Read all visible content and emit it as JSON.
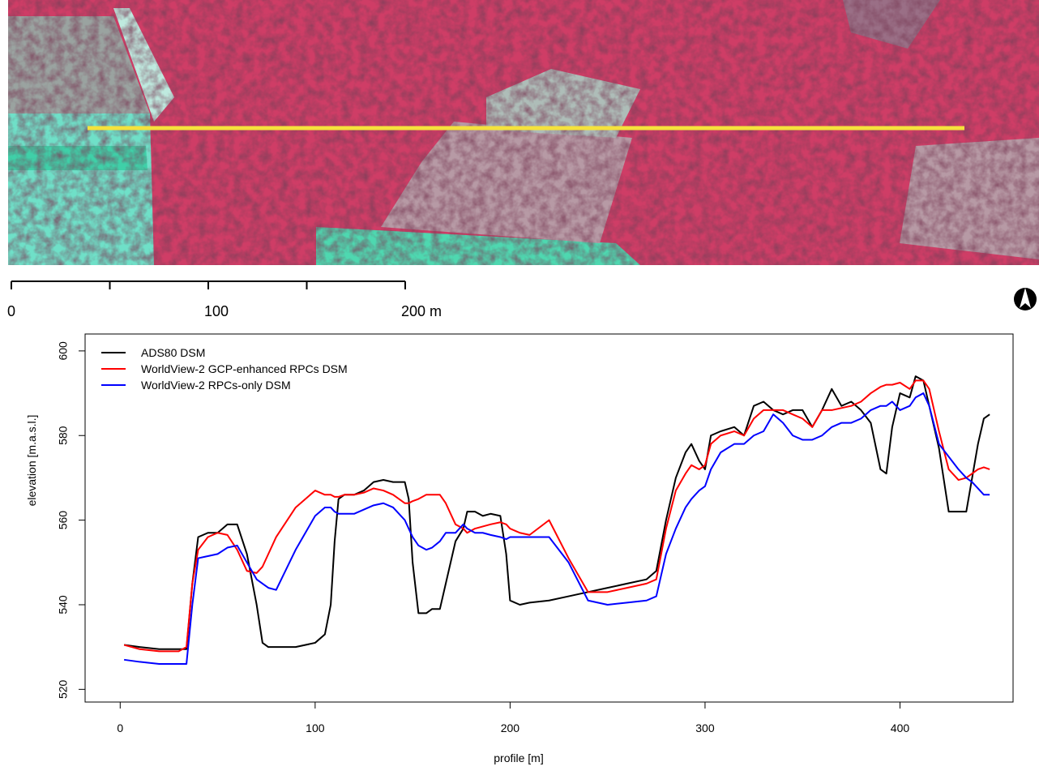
{
  "scale_bar": {
    "lim": [
      0,
      200
    ],
    "ticks": [
      0,
      50,
      100,
      150,
      200
    ],
    "labels": [
      0,
      100,
      {
        "value": 200,
        "label": "200 m"
      }
    ]
  },
  "chart_data": {
    "type": "line",
    "xlabel": "profile [m]",
    "ylabel": "elevation [m.a.s.l.]",
    "xlim": [
      -18,
      458
    ],
    "ylim": [
      517,
      604
    ],
    "xticks": [
      0,
      100,
      200,
      300,
      400
    ],
    "yticks": [
      520,
      540,
      560,
      580,
      600
    ],
    "legend": "top-left",
    "grid": false,
    "x": [
      2,
      10,
      20,
      30,
      34,
      37,
      40,
      45,
      50,
      55,
      60,
      65,
      70,
      73,
      76,
      80,
      90,
      100,
      105,
      108,
      110,
      112,
      115,
      120,
      125,
      130,
      135,
      140,
      146,
      148,
      150,
      153,
      157,
      160,
      164,
      167,
      172,
      176,
      178,
      182,
      186,
      190,
      195,
      198,
      200,
      205,
      210,
      220,
      230,
      240,
      250,
      260,
      270,
      275,
      280,
      285,
      290,
      293,
      297,
      300,
      303,
      308,
      315,
      320,
      325,
      330,
      335,
      340,
      345,
      350,
      355,
      360,
      365,
      370,
      375,
      380,
      385,
      390,
      393,
      396,
      400,
      405,
      408,
      412,
      415,
      420,
      425,
      430,
      434,
      437,
      440,
      443,
      446
    ],
    "series": [
      {
        "name": "ADS80 DSM",
        "color": "#000000",
        "values": [
          530.5,
          530,
          529.5,
          529.5,
          529.5,
          545,
          556,
          557,
          557,
          559,
          559,
          552,
          540,
          531,
          530,
          530,
          530,
          531,
          533,
          540,
          555,
          565,
          566,
          566,
          567,
          569,
          569.5,
          569,
          569,
          565,
          550,
          538,
          538,
          539,
          539,
          545,
          555,
          558,
          562,
          562,
          561,
          561.5,
          561,
          552,
          541,
          540,
          540.5,
          541,
          542,
          543,
          544,
          545,
          546,
          548,
          560,
          570,
          576,
          578,
          574,
          572,
          580,
          581,
          582,
          580,
          587,
          588,
          586,
          585,
          586,
          586,
          582,
          586,
          591,
          587,
          588,
          586,
          583,
          572,
          571,
          582,
          590,
          589,
          594,
          593,
          587,
          577,
          562,
          562,
          562,
          570,
          578,
          584,
          585
        ]
      },
      {
        "name": "WorldView-2 GCP-enhanced RPCs DSM",
        "color": "#ff0000",
        "values": [
          530.5,
          529.5,
          529,
          529,
          530,
          545,
          553,
          556,
          557,
          556.5,
          553,
          548,
          547.5,
          549,
          552,
          556,
          563,
          567,
          566,
          566,
          565.5,
          565.5,
          566,
          566,
          566.5,
          567.5,
          567,
          566,
          564,
          564,
          564.5,
          565,
          566,
          566,
          566,
          564,
          559,
          558,
          557,
          558,
          558.5,
          559,
          559.5,
          559,
          558,
          557,
          556.5,
          560,
          551,
          543,
          543,
          544,
          545,
          546,
          558,
          567,
          571,
          573,
          572,
          573,
          578,
          580,
          581,
          580,
          584,
          586,
          586,
          586,
          585,
          584,
          582,
          586,
          586,
          586.5,
          587,
          588,
          590,
          591.5,
          592,
          592,
          592.5,
          591,
          593,
          593,
          591,
          581,
          572,
          569.5,
          570,
          571,
          572,
          572.5,
          572
        ]
      },
      {
        "name": "WorldView-2 RPCs-only DSM",
        "color": "#0000ff",
        "values": [
          527,
          526.5,
          526,
          526,
          526,
          540,
          551,
          551.5,
          552,
          553.5,
          554,
          550,
          546,
          545,
          544,
          543.5,
          553,
          561,
          563,
          563,
          562,
          561.5,
          561.5,
          561.5,
          562.5,
          563.5,
          564,
          563,
          560,
          558,
          556,
          554,
          553,
          553.5,
          555,
          557,
          557,
          559,
          558,
          557,
          557,
          556.5,
          556,
          555.5,
          556,
          556,
          556,
          556,
          550,
          541,
          540,
          540.5,
          541,
          542,
          552,
          558,
          563,
          565,
          567,
          568,
          572,
          576,
          578,
          578,
          580,
          581,
          585,
          583,
          580,
          579,
          579,
          580,
          582,
          583,
          583,
          584,
          586,
          587,
          587,
          588,
          586,
          587,
          589,
          590,
          587,
          578,
          575,
          572,
          570,
          569,
          567.5,
          566,
          566
        ]
      }
    ]
  }
}
